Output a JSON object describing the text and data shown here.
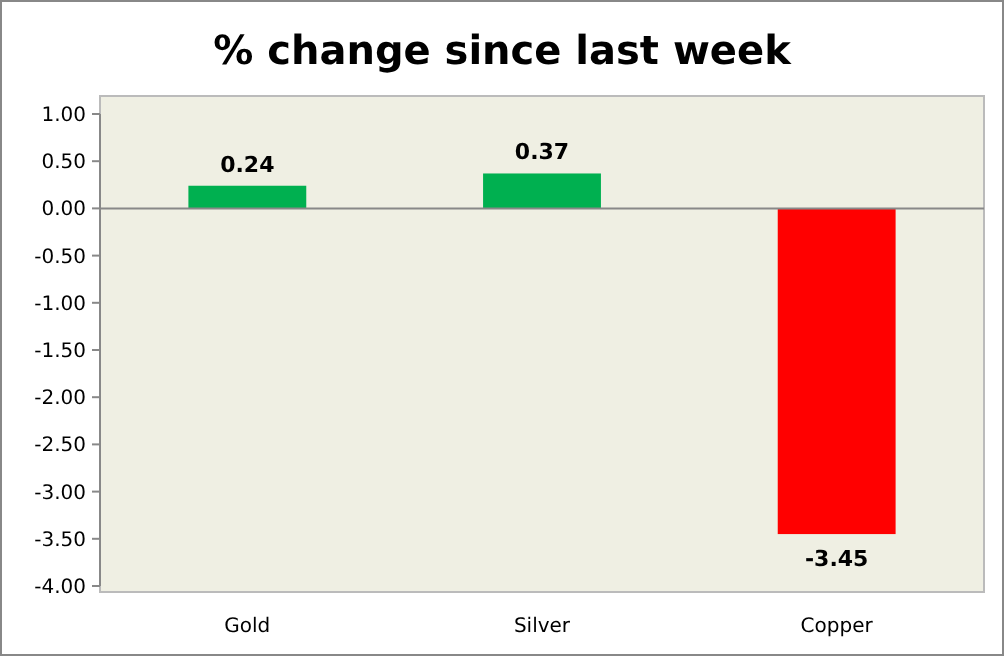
{
  "chart_data": {
    "type": "bar",
    "title": "% change since last week",
    "categories": [
      "Gold",
      "Silver",
      "Copper"
    ],
    "values": [
      0.24,
      0.37,
      -3.45
    ],
    "colors": [
      "#00b050",
      "#00b050",
      "#ff0000"
    ],
    "ylim": [
      -4,
      1
    ],
    "yticks": [
      {
        "value": 1,
        "label": "1.00"
      },
      {
        "value": 0.5,
        "label": "0.50"
      },
      {
        "value": 0,
        "label": "0.00"
      },
      {
        "value": -0.5,
        "label": "-0.50"
      },
      {
        "value": -1,
        "label": "-1.00"
      },
      {
        "value": -1.5,
        "label": "-1.50"
      },
      {
        "value": -2,
        "label": "-2.00"
      },
      {
        "value": -2.5,
        "label": "-2.50"
      },
      {
        "value": -3,
        "label": "-3.00"
      },
      {
        "value": -3.5,
        "label": "-3.50"
      },
      {
        "value": -4,
        "label": "-4.00"
      }
    ],
    "data_labels": true
  }
}
